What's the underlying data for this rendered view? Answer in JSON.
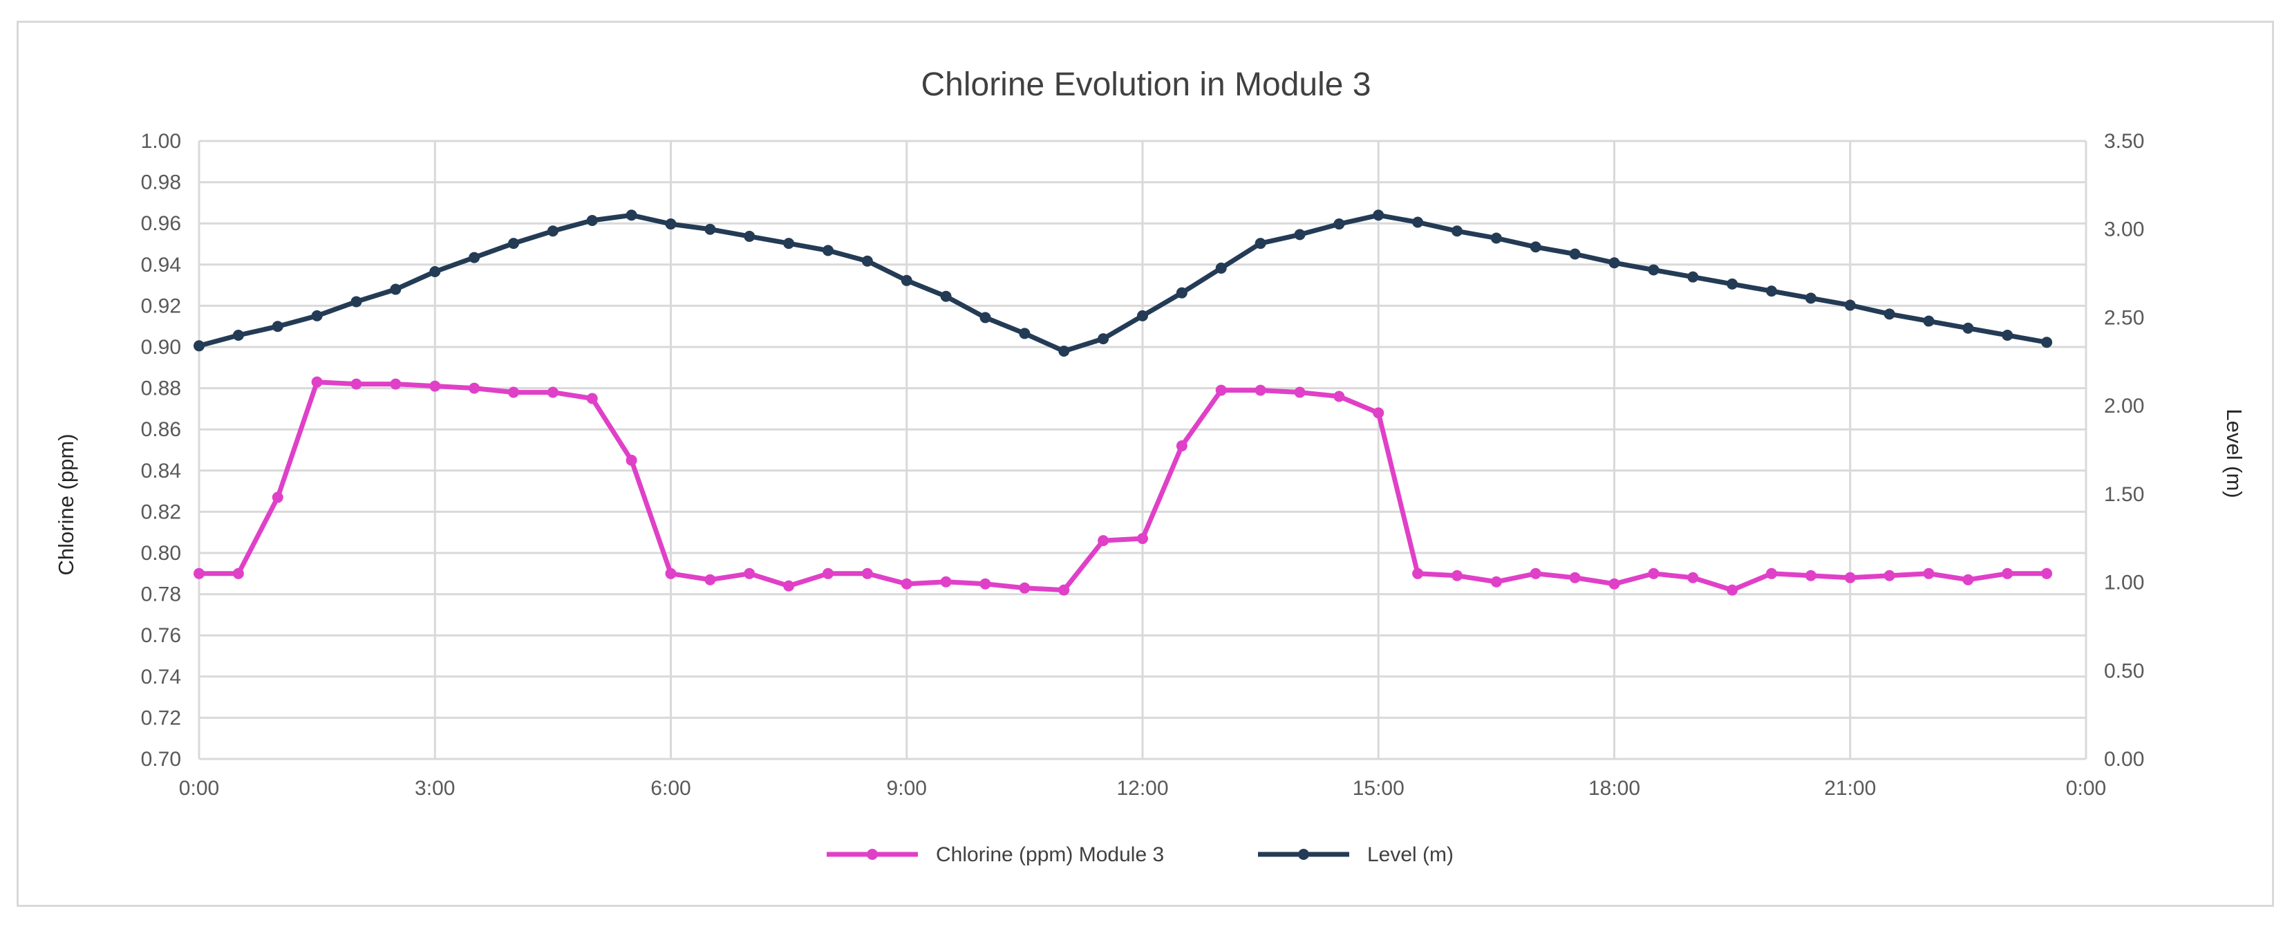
{
  "chart_data": {
    "type": "line",
    "title": "Chlorine Evolution in Module 3",
    "x_tick_labels": [
      "0:00",
      "3:00",
      "6:00",
      "9:00",
      "12:00",
      "15:00",
      "18:00",
      "21:00",
      "0:00"
    ],
    "x_hours": [
      0,
      0.5,
      1,
      1.5,
      2,
      2.5,
      3,
      3.5,
      4,
      4.5,
      5,
      5.5,
      6,
      6.5,
      7,
      7.5,
      8,
      8.5,
      9,
      9.5,
      10,
      10.5,
      11,
      11.5,
      12,
      12.5,
      13,
      13.5,
      14,
      14.5,
      15,
      15.5,
      16,
      16.5,
      17,
      17.5,
      18,
      18.5,
      19,
      19.5,
      20,
      20.5,
      21,
      21.5,
      22,
      22.5,
      23,
      23.5
    ],
    "xlim": [
      0,
      24
    ],
    "y_left": {
      "label": "Chlorine (ppm)",
      "min": 0.7,
      "max": 1.0,
      "step": 0.02,
      "tick_labels": [
        "0.70",
        "0.72",
        "0.74",
        "0.76",
        "0.78",
        "0.80",
        "0.82",
        "0.84",
        "0.86",
        "0.88",
        "0.90",
        "0.92",
        "0.94",
        "0.96",
        "0.98",
        "1.00"
      ]
    },
    "y_right": {
      "label": "Level (m)",
      "min": 0.0,
      "max": 3.5,
      "step": 0.5,
      "tick_labels": [
        "0.00",
        "0.50",
        "1.00",
        "1.50",
        "2.00",
        "2.50",
        "3.00",
        "3.50"
      ]
    },
    "grid": true,
    "legend_position": "bottom",
    "series": [
      {
        "name": "Chlorine (ppm) Module 3",
        "axis": "left",
        "color": "#e040c8",
        "values": [
          0.79,
          0.79,
          0.827,
          0.883,
          0.882,
          0.882,
          0.881,
          0.88,
          0.878,
          0.878,
          0.875,
          0.845,
          0.79,
          0.787,
          0.79,
          0.784,
          0.79,
          0.79,
          0.785,
          0.786,
          0.785,
          0.783,
          0.782,
          0.806,
          0.807,
          0.852,
          0.879,
          0.879,
          0.878,
          0.876,
          0.868,
          0.79,
          0.789,
          0.786,
          0.79,
          0.788,
          0.785,
          0.79,
          0.788,
          0.782,
          0.79,
          0.789,
          0.788,
          0.789,
          0.79,
          0.787,
          0.79,
          0.79
        ]
      },
      {
        "name": "Level (m)",
        "axis": "right",
        "color": "#243b55",
        "values": [
          2.34,
          2.4,
          2.45,
          2.51,
          2.59,
          2.66,
          2.76,
          2.84,
          2.92,
          2.99,
          3.05,
          3.08,
          3.03,
          3.0,
          2.96,
          2.92,
          2.88,
          2.82,
          2.71,
          2.62,
          2.5,
          2.41,
          2.31,
          2.38,
          2.51,
          2.64,
          2.78,
          2.92,
          2.97,
          3.03,
          3.08,
          3.04,
          2.99,
          2.95,
          2.9,
          2.86,
          2.81,
          2.77,
          2.73,
          2.69,
          2.65,
          2.61,
          2.57,
          2.52,
          2.48,
          2.44,
          2.4,
          2.36
        ]
      }
    ]
  }
}
